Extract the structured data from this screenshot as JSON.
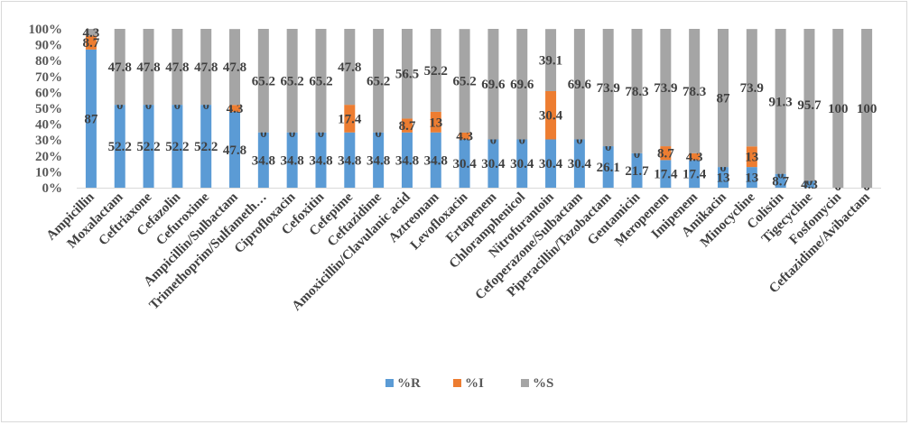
{
  "chart_data": {
    "type": "bar",
    "stacked": true,
    "percent_stacked": true,
    "title": "",
    "xlabel": "",
    "ylabel": "",
    "ylim": [
      0,
      100
    ],
    "yticks": [
      "0%",
      "10%",
      "20%",
      "30%",
      "40%",
      "50%",
      "60%",
      "70%",
      "80%",
      "90%",
      "100%"
    ],
    "grid": false,
    "legend_position": "bottom",
    "categories": [
      "Ampicillin",
      "Moxalactam",
      "Ceftriaxone",
      "Cefazolin",
      "Cefuroxime",
      "Ampicillin/Sulbactam",
      "Trimethoprim/Sulfameth…",
      "Ciprofloxacin",
      "Cefoxitin",
      "Cefepime",
      "Ceftazidime",
      "Amoxicillin/Clavulanic acid",
      "Aztreonam",
      "Levofloxacin",
      "Ertapenem",
      "Chloramphenicol",
      "Nitrofurantoin",
      "Cefoperazone/Sulbactam",
      "Piperacillin/Tazobactam",
      "Gentamicin",
      "Meropenem",
      "Imipenem",
      "Amikacin",
      "Minocycline",
      "Colistin",
      "Tigecycline",
      "Fosfomycin",
      "Ceftazidime/Avibactam"
    ],
    "series": [
      {
        "name": "%R",
        "color": "#5b9bd5",
        "values": [
          87,
          52.2,
          52.2,
          52.2,
          52.2,
          47.8,
          34.8,
          34.8,
          34.8,
          34.8,
          34.8,
          34.8,
          34.8,
          30.4,
          30.4,
          30.4,
          30.4,
          30.4,
          26.1,
          21.7,
          17.4,
          17.4,
          13,
          13,
          8.7,
          4.3,
          0,
          0
        ]
      },
      {
        "name": "%I",
        "color": "#ed7d31",
        "values": [
          8.7,
          0,
          0,
          0,
          0,
          4.3,
          0,
          0,
          0,
          17.4,
          0,
          8.7,
          13,
          4.3,
          0,
          0,
          30.4,
          0,
          0,
          0,
          8.7,
          4.3,
          0,
          13,
          0,
          0,
          0,
          0
        ]
      },
      {
        "name": "%S",
        "color": "#a5a5a5",
        "values": [
          4.3,
          47.8,
          47.8,
          47.8,
          47.8,
          47.8,
          65.2,
          65.2,
          65.2,
          47.8,
          65.2,
          56.5,
          52.2,
          65.2,
          69.6,
          69.6,
          39.1,
          69.6,
          73.9,
          78.3,
          73.9,
          78.3,
          87,
          73.9,
          91.3,
          95.7,
          100,
          100
        ]
      }
    ]
  }
}
